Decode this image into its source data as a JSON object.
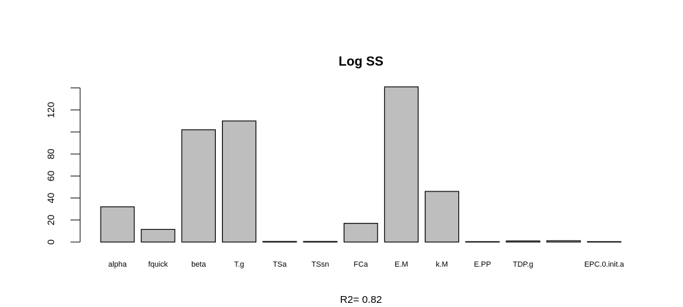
{
  "chart_data": {
    "type": "bar",
    "title": "Log SS",
    "xlabel": "",
    "ylabel": "",
    "subtitle": "R2= 0.82",
    "categories": [
      "alpha",
      "fquick",
      "beta",
      "T.g",
      "TSa",
      "TSsn",
      "FCa",
      "E.M",
      "k.M",
      "E.PP",
      "TDP.g",
      "",
      "EPC.0.init.a"
    ],
    "values": [
      32,
      11.5,
      102,
      110,
      0.5,
      0.5,
      17,
      141,
      46,
      0.3,
      1,
      1.2,
      0.2
    ],
    "ylim": [
      0,
      141
    ],
    "yticks": [
      0,
      20,
      40,
      60,
      80,
      120
    ],
    "grid": false,
    "colors": {
      "bar_fill": "#bebebe",
      "bar_stroke": "#000000"
    }
  }
}
